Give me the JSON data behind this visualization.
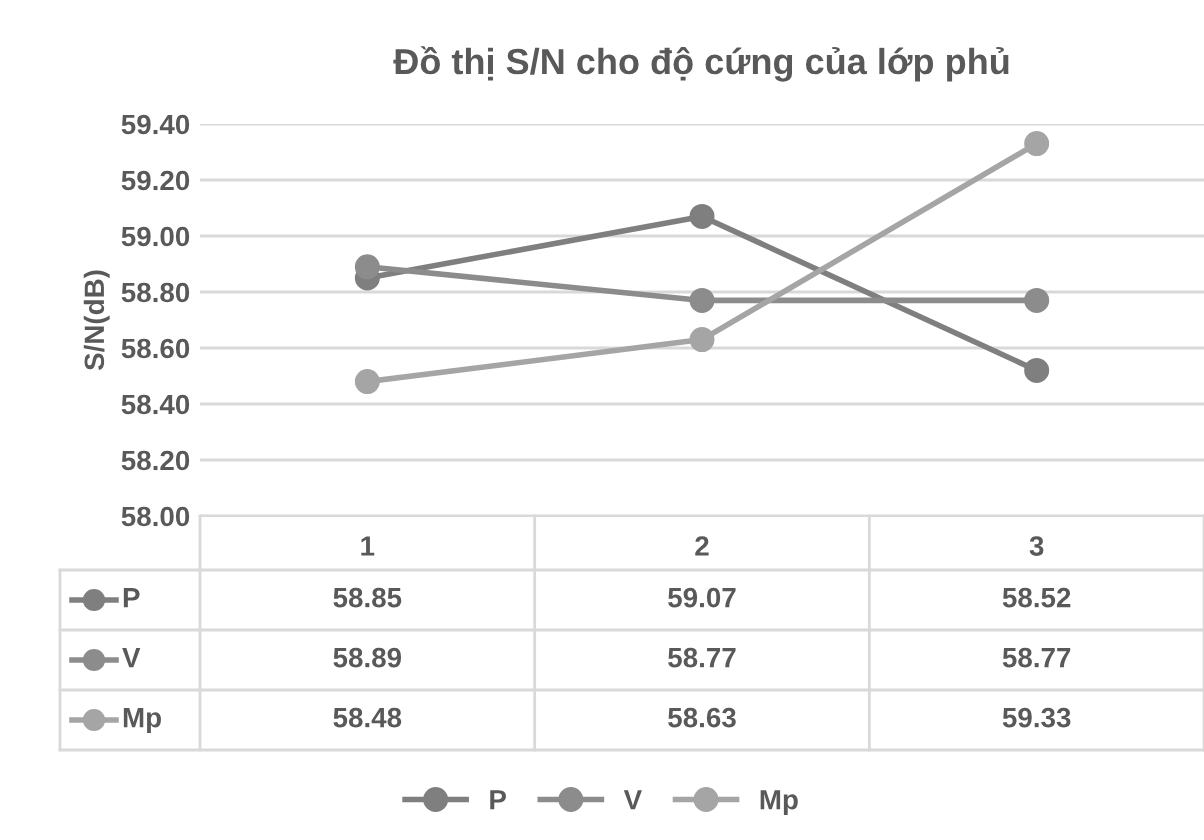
{
  "chart_data": {
    "type": "line",
    "title": "Đồ thị S/N cho độ cứng của lớp phủ",
    "ylabel": "S/N(dB)",
    "categories": [
      "1",
      "2",
      "3"
    ],
    "series": [
      {
        "name": "P",
        "color": "#7f7f7f",
        "values": [
          58.85,
          59.07,
          58.52
        ]
      },
      {
        "name": "V",
        "color": "#8c8c8c",
        "values": [
          58.89,
          58.77,
          58.77
        ]
      },
      {
        "name": "Mp",
        "color": "#a5a5a5",
        "values": [
          58.48,
          58.63,
          59.33
        ]
      }
    ],
    "ylim": [
      58.0,
      59.4
    ],
    "yticks": [
      {
        "value": 58.0,
        "label": "58.00"
      },
      {
        "value": 58.2,
        "label": "58.20"
      },
      {
        "value": 58.4,
        "label": "58.40"
      },
      {
        "value": 58.6,
        "label": "58.60"
      },
      {
        "value": 58.8,
        "label": "58.80"
      },
      {
        "value": 59.0,
        "label": "59.00"
      },
      {
        "value": 59.2,
        "label": "59.20"
      },
      {
        "value": 59.4,
        "label": "59.40"
      }
    ],
    "grid": "y",
    "legend": "bottom",
    "marker": "circle",
    "line_style": "solid",
    "data_labels": true
  }
}
